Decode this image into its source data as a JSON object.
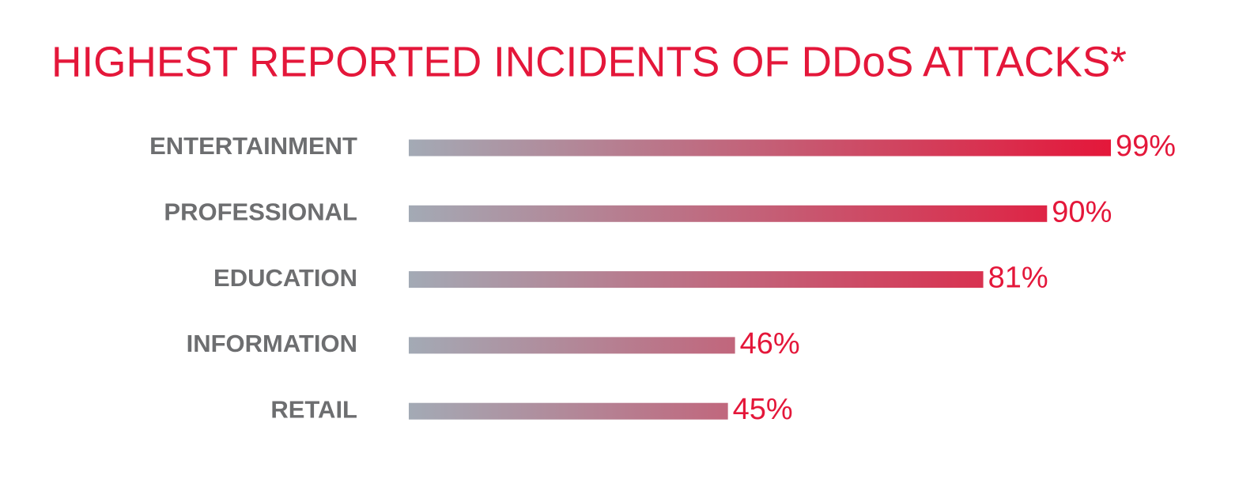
{
  "chart_data": {
    "type": "bar",
    "orientation": "horizontal",
    "title": "HIGHEST REPORTED INCIDENTS OF DDoS ATTACKS*",
    "categories": [
      "ENTERTAINMENT",
      "PROFESSIONAL",
      "EDUCATION",
      "INFORMATION",
      "RETAIL"
    ],
    "values": [
      99,
      90,
      81,
      46,
      45
    ],
    "value_labels": [
      "99%",
      "90%",
      "81%",
      "46%",
      "45%"
    ],
    "gradient_colors": [
      "#a3aab5",
      "#e4173a"
    ]
  }
}
